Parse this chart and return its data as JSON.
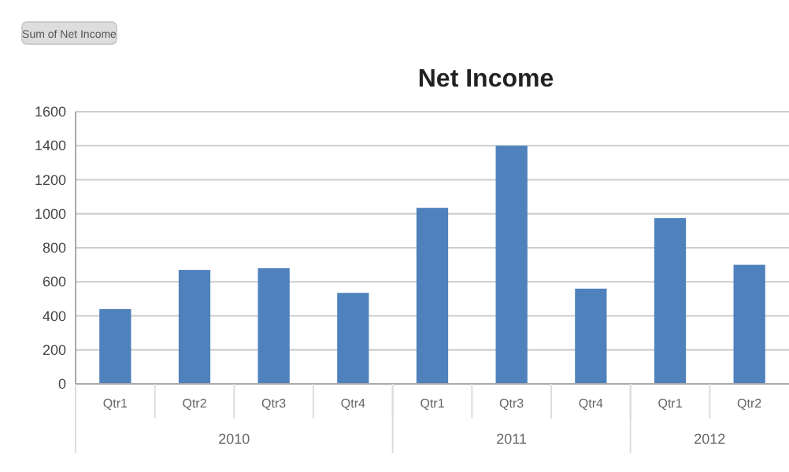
{
  "chart_data": {
    "type": "bar",
    "title": "Net Income",
    "categories": [
      "Qtr1",
      "Qtr2",
      "Qtr3",
      "Qtr4",
      "Qtr1",
      "Qtr3",
      "Qtr4",
      "Qtr1",
      "Qtr2"
    ],
    "values": [
      440,
      670,
      680,
      535,
      1035,
      1400,
      560,
      975,
      700
    ],
    "color": "#4f81bd",
    "ylim": [
      0,
      1600
    ],
    "yticks": [
      0,
      200,
      400,
      600,
      800,
      1000,
      1200,
      1400,
      1600
    ],
    "grid": "y",
    "annotations": [
      "Sum of Net Income",
      "2010",
      "2011",
      "2012"
    ]
  }
}
